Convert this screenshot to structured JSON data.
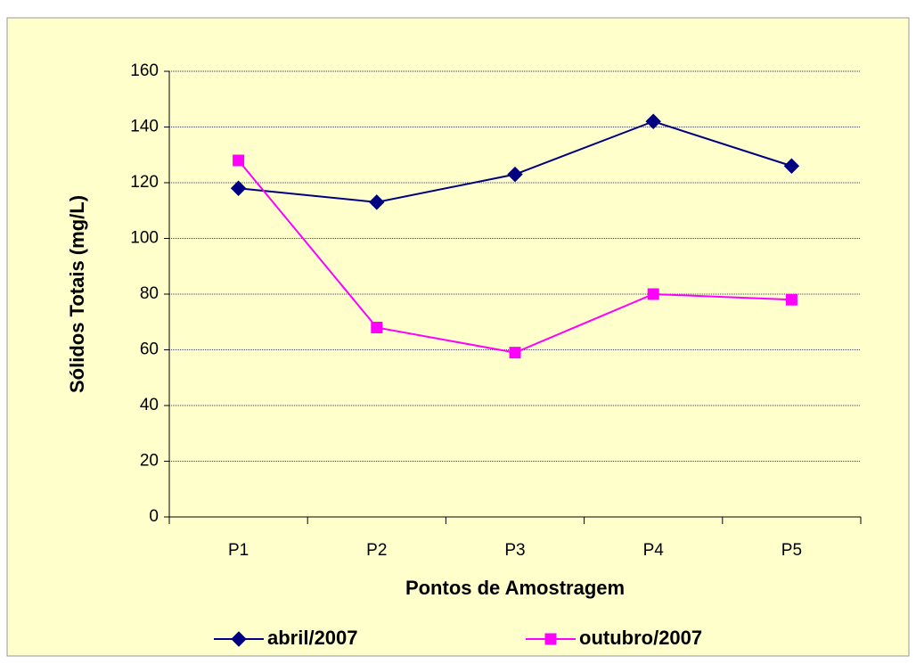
{
  "chart_data": {
    "type": "line",
    "xlabel": "Pontos de Amostragem",
    "ylabel": "Sólidos Totais (mg/L)",
    "categories": [
      "P1",
      "P2",
      "P3",
      "P4",
      "P5"
    ],
    "series": [
      {
        "name": "abril/2007",
        "color": "#000080",
        "marker": "diamond",
        "values": [
          118,
          113,
          123,
          142,
          126
        ]
      },
      {
        "name": "outubro/2007",
        "color": "#ff00ff",
        "marker": "square",
        "values": [
          128,
          68,
          59,
          80,
          78
        ]
      }
    ],
    "ylim": [
      0,
      160
    ],
    "yticks": [
      0,
      20,
      40,
      60,
      80,
      100,
      120,
      140,
      160
    ],
    "grid": true,
    "legend": "bottom",
    "background": "#ffffcc"
  }
}
